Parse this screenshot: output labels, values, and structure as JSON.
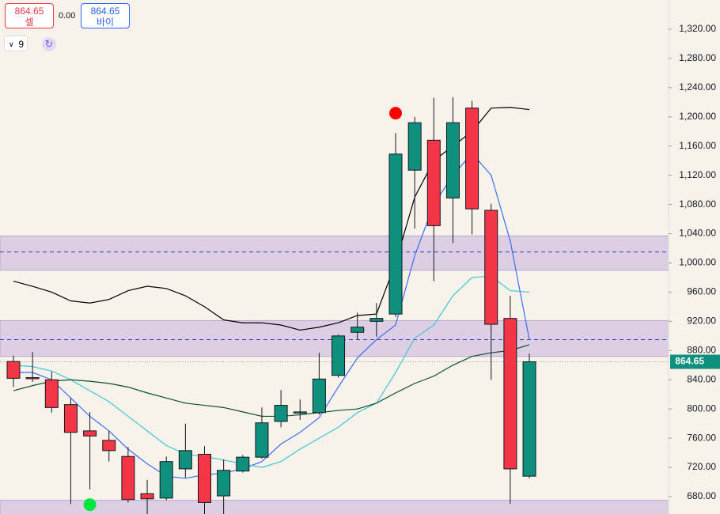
{
  "toolbar": {
    "sell_price": "864.65",
    "sell_label": "셀",
    "spread": "0.00",
    "buy_price": "864.65",
    "buy_label": "바이",
    "interval": "9"
  },
  "chart_data": {
    "type": "candlestick",
    "open": [
      865,
      843,
      840,
      806,
      770,
      757,
      735,
      684,
      678,
      718,
      738,
      681,
      715,
      734,
      783,
      796,
      795,
      846,
      905,
      920,
      930,
      1127,
      1168,
      1089,
      1212,
      1072,
      924,
      708
    ],
    "high": [
      873,
      878,
      851,
      815,
      796,
      770,
      748,
      703,
      735,
      780,
      749,
      731,
      737,
      802,
      826,
      813,
      877,
      902,
      932,
      945,
      1178,
      1200,
      1226,
      1227,
      1222,
      1081,
      955,
      876
    ],
    "low": [
      830,
      837,
      795,
      670,
      690,
      728,
      672,
      655,
      675,
      706,
      656,
      656,
      713,
      732,
      775,
      785,
      792,
      843,
      895,
      899,
      926,
      1047,
      975,
      1027,
      1039,
      840,
      670,
      705
    ],
    "close": [
      842,
      842,
      802,
      768,
      763,
      743,
      676,
      677,
      728,
      743,
      672,
      716,
      734,
      781,
      805,
      796,
      841,
      900,
      912,
      924,
      1149,
      1192,
      1051,
      1192,
      1074,
      916,
      718,
      864.65
    ],
    "up_color": "#0f8f7e",
    "down_color": "#f23645",
    "lines": [
      {
        "color": "#000000",
        "values": [
          975,
          968,
          960,
          948,
          945,
          950,
          962,
          968,
          965,
          955,
          940,
          922,
          918,
          918,
          915,
          908,
          912,
          918,
          928,
          930,
          1000,
          1090,
          1140,
          1160,
          1180,
          1212,
          1213,
          1210
        ]
      },
      {
        "color": "#3d6df2",
        "values": [
          850,
          850,
          840,
          815,
          790,
          770,
          745,
          725,
          708,
          705,
          710,
          712,
          718,
          728,
          752,
          768,
          788,
          830,
          870,
          895,
          915,
          1010,
          1080,
          1120,
          1150,
          1120,
          1030,
          895
        ]
      },
      {
        "color": "#3fc4d6",
        "values": [
          860,
          858,
          852,
          840,
          825,
          810,
          790,
          770,
          750,
          738,
          735,
          730,
          725,
          720,
          728,
          745,
          760,
          775,
          795,
          808,
          850,
          897,
          915,
          955,
          980,
          982,
          962,
          960
        ]
      },
      {
        "color": "#0b4d2c",
        "values": [
          825,
          832,
          838,
          840,
          838,
          835,
          830,
          822,
          815,
          808,
          805,
          802,
          796,
          790,
          790,
          792,
          795,
          798,
          800,
          808,
          822,
          835,
          845,
          860,
          872,
          877,
          880,
          888
        ]
      }
    ],
    "zones": [
      [
        990,
        1037
      ],
      [
        872,
        921
      ],
      [
        650,
        675
      ]
    ],
    "zone_color": "#c9b6dd",
    "levels": [
      1015,
      895
    ],
    "level_color": "#3b36c9",
    "last_price": 864.65,
    "last_color": "#0f8f7e",
    "signals": [
      {
        "at": 20,
        "value": 1205,
        "color": "#ff0000"
      },
      {
        "at": 4,
        "value": 669,
        "color": "#00e640"
      }
    ],
    "ylim": [
      656.2,
      1360
    ],
    "yticks": [
      {
        "value": 680,
        "label": "680.00"
      },
      {
        "value": 720,
        "label": "720.00"
      },
      {
        "value": 760,
        "label": "760.00"
      },
      {
        "value": 800,
        "label": "800.00"
      },
      {
        "value": 840,
        "label": "840.00"
      },
      {
        "value": 880,
        "label": "880.00"
      },
      {
        "value": 920,
        "label": "920.00"
      },
      {
        "value": 960,
        "label": "960.00"
      },
      {
        "value": 1000,
        "label": "1,000.00"
      },
      {
        "value": 1040,
        "label": "1,040.00"
      },
      {
        "value": 1080,
        "label": "1,080.00"
      },
      {
        "value": 1120,
        "label": "1,120.00"
      },
      {
        "value": 1160,
        "label": "1,160.00"
      },
      {
        "value": 1200,
        "label": "1,200.00"
      },
      {
        "value": 1240,
        "label": "1,240.00"
      },
      {
        "value": 1280,
        "label": "1,280.00"
      },
      {
        "value": 1320,
        "label": "1,320.00"
      }
    ]
  }
}
